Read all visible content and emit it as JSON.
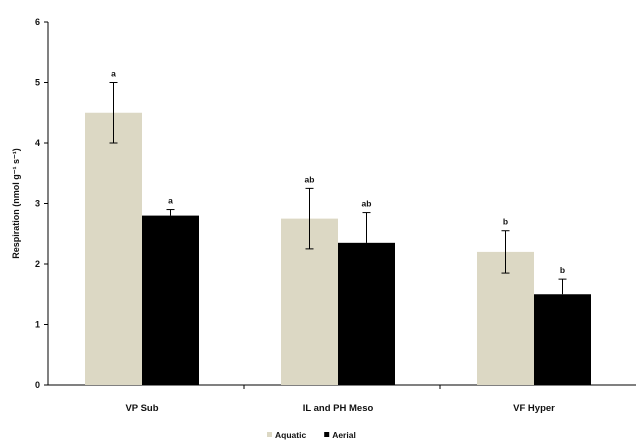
{
  "chart_data": {
    "type": "bar",
    "categories": [
      "VP Sub",
      "IL and PH Meso",
      "VF Hyper"
    ],
    "series": [
      {
        "name": "Aquatic",
        "color": "#dcd8c4",
        "values": [
          4.5,
          2.75,
          2.2
        ],
        "errors": [
          0.5,
          0.5,
          0.35
        ],
        "labels": [
          "a",
          "ab",
          "b"
        ]
      },
      {
        "name": "Aerial",
        "color": "#000000",
        "values": [
          2.8,
          2.35,
          1.5
        ],
        "errors": [
          0.1,
          0.5,
          0.25
        ],
        "labels": [
          "a",
          "ab",
          "b"
        ]
      }
    ],
    "ylabel": "Respiration (nmol g⁻¹ s⁻¹)",
    "xlabel": "",
    "title": "",
    "ylim": [
      0,
      6
    ],
    "yticks": [
      0,
      1,
      2,
      3,
      4,
      5,
      6
    ],
    "grid": false,
    "legend": "bottom-center"
  }
}
